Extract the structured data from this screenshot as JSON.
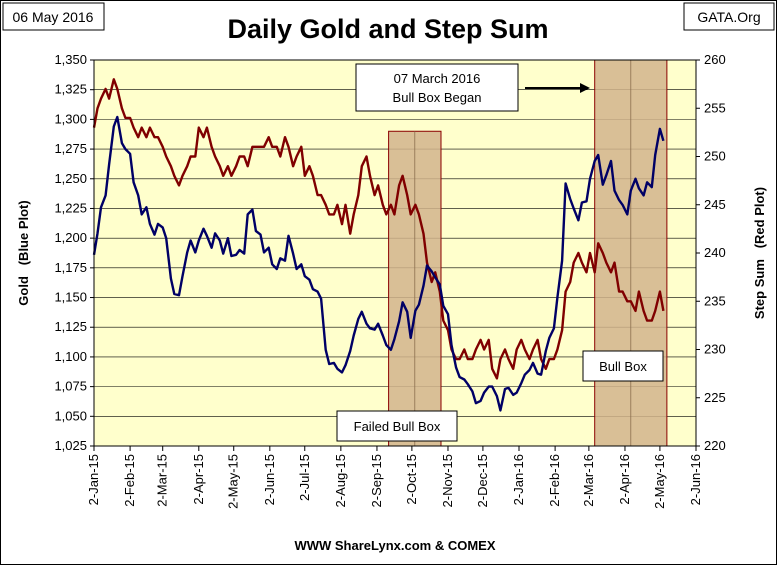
{
  "chart_data": {
    "type": "line",
    "title": "Daily Gold and Step Sum",
    "date_label": "06 May 2016",
    "brand": "GATA.Org",
    "source": "WWW ShareLynx.com & COMEX",
    "ylabel_left": "Gold   (Blue Plot)",
    "ylabel_right": "Step Sum   (Red Plot)",
    "x_ticks": [
      "2-Jan-15",
      "2-Feb-15",
      "2-Mar-15",
      "2-Apr-15",
      "2-May-15",
      "2-Jun-15",
      "2-Jul-15",
      "2-Aug-15",
      "2-Sep-15",
      "2-Oct-15",
      "2-Nov-15",
      "2-Dec-15",
      "2-Jan-16",
      "2-Feb-16",
      "2-Mar-16",
      "2-Apr-16",
      "2-May-16",
      "2-Jun-16"
    ],
    "x_range": [
      "2-Jan-15",
      "2-Jun-16"
    ],
    "ylim_left": [
      1025,
      1350
    ],
    "y_ticks_left": [
      "1,025",
      "1,050",
      "1,075",
      "1,100",
      "1,125",
      "1,150",
      "1,175",
      "1,200",
      "1,225",
      "1,250",
      "1,275",
      "1,300",
      "1,325",
      "1,350"
    ],
    "ylim_right": [
      220,
      260
    ],
    "y_ticks_right": [
      "220",
      "225",
      "230",
      "235",
      "240",
      "245",
      "250",
      "255",
      "260"
    ],
    "grid": "horizontal",
    "annotations": [
      {
        "name": "failed-bull-box",
        "label": "Failed Bull Box",
        "x_start": "2015-09-12",
        "x_end": "2015-10-27",
        "y_top_left_axis": 1290
      },
      {
        "name": "bull-box",
        "label": "Bull Box",
        "x_start": "2016-03-07",
        "x_end": "2016-05-08",
        "y_top_left_axis": 1350
      },
      {
        "name": "bull-box-began",
        "label_line1": "07 March 2016",
        "label_line2": "Bull Box Began",
        "arrow": "right"
      }
    ],
    "colors": {
      "gold_series": "#000066",
      "step_sum_series": "#800000",
      "plot_bg": "#ffffcc",
      "box_fill": "#d2b48c"
    },
    "series": [
      {
        "axis": "left",
        "x": [
          "2015-01-02",
          "2015-01-05",
          "2015-01-08",
          "2015-01-12",
          "2015-01-15",
          "2015-01-19",
          "2015-01-22",
          "2015-01-26",
          "2015-01-29",
          "2015-02-02",
          "2015-02-05",
          "2015-02-09",
          "2015-02-12",
          "2015-02-16",
          "2015-02-19",
          "2015-02-23",
          "2015-02-26",
          "2015-03-02",
          "2015-03-05",
          "2015-03-09",
          "2015-03-12",
          "2015-03-16",
          "2015-03-19",
          "2015-03-23",
          "2015-03-26",
          "2015-03-30",
          "2015-04-02",
          "2015-04-06",
          "2015-04-09",
          "2015-04-13",
          "2015-04-16",
          "2015-04-20",
          "2015-04-23",
          "2015-04-27",
          "2015-04-30",
          "2015-05-04",
          "2015-05-07",
          "2015-05-11",
          "2015-05-14",
          "2015-05-18",
          "2015-05-21",
          "2015-05-25",
          "2015-05-28",
          "2015-06-01",
          "2015-06-04",
          "2015-06-08",
          "2015-06-11",
          "2015-06-15",
          "2015-06-18",
          "2015-06-22",
          "2015-06-25",
          "2015-06-29",
          "2015-07-02",
          "2015-07-06",
          "2015-07-09",
          "2015-07-13",
          "2015-07-16",
          "2015-07-20",
          "2015-07-23",
          "2015-07-27",
          "2015-07-30",
          "2015-08-03",
          "2015-08-06",
          "2015-08-10",
          "2015-08-13",
          "2015-08-17",
          "2015-08-20",
          "2015-08-24",
          "2015-08-27",
          "2015-08-31",
          "2015-09-03",
          "2015-09-07",
          "2015-09-10",
          "2015-09-14",
          "2015-09-17",
          "2015-09-21",
          "2015-09-24",
          "2015-09-28",
          "2015-10-01",
          "2015-10-05",
          "2015-10-08",
          "2015-10-12",
          "2015-10-15",
          "2015-10-19",
          "2015-10-22",
          "2015-10-26",
          "2015-10-29",
          "2015-11-02",
          "2015-11-05",
          "2015-11-09",
          "2015-11-12",
          "2015-11-16",
          "2015-11-19",
          "2015-11-23",
          "2015-11-26",
          "2015-11-30",
          "2015-12-03",
          "2015-12-07",
          "2015-12-10",
          "2015-12-14",
          "2015-12-17",
          "2015-12-21",
          "2015-12-24",
          "2015-12-28",
          "2015-12-31",
          "2016-01-04",
          "2016-01-07",
          "2016-01-11",
          "2016-01-14",
          "2016-01-18",
          "2016-01-21",
          "2016-01-25",
          "2016-01-28",
          "2016-02-01",
          "2016-02-04",
          "2016-02-08",
          "2016-02-11",
          "2016-02-15",
          "2016-02-18",
          "2016-02-22",
          "2016-02-25",
          "2016-02-29",
          "2016-03-03",
          "2016-03-07",
          "2016-03-10",
          "2016-03-14",
          "2016-03-17",
          "2016-03-21",
          "2016-03-24",
          "2016-03-28",
          "2016-03-31",
          "2016-04-04",
          "2016-04-07",
          "2016-04-11",
          "2016-04-14",
          "2016-04-18",
          "2016-04-21",
          "2016-04-25",
          "2016-04-28",
          "2016-05-02",
          "2016-05-05"
        ],
        "values": [
          1186,
          1204,
          1226,
          1236,
          1262,
          1294,
          1302,
          1280,
          1275,
          1271,
          1247,
          1236,
          1220,
          1226,
          1212,
          1203,
          1212,
          1209,
          1200,
          1166,
          1153,
          1152,
          1168,
          1188,
          1198,
          1188,
          1198,
          1208,
          1202,
          1192,
          1204,
          1198,
          1187,
          1200,
          1185,
          1186,
          1190,
          1187,
          1220,
          1224,
          1206,
          1203,
          1188,
          1192,
          1178,
          1174,
          1183,
          1181,
          1202,
          1187,
          1174,
          1178,
          1168,
          1165,
          1157,
          1155,
          1149,
          1106,
          1094,
          1095,
          1090,
          1087,
          1093,
          1105,
          1118,
          1132,
          1138,
          1128,
          1124,
          1123,
          1128,
          1118,
          1110,
          1106,
          1115,
          1130,
          1146,
          1138,
          1116,
          1139,
          1144,
          1160,
          1177,
          1172,
          1167,
          1161,
          1143,
          1136,
          1110,
          1091,
          1083,
          1081,
          1077,
          1071,
          1061,
          1063,
          1070,
          1075,
          1075,
          1067,
          1055,
          1073,
          1074,
          1068,
          1070,
          1078,
          1085,
          1089,
          1095,
          1086,
          1085,
          1105,
          1116,
          1124,
          1150,
          1181,
          1246,
          1233,
          1225,
          1215,
          1230,
          1231,
          1250,
          1265,
          1270,
          1245,
          1253,
          1265,
          1240,
          1232,
          1228,
          1220,
          1240,
          1250,
          1242,
          1236,
          1247,
          1243,
          1270,
          1292,
          1282
        ]
      },
      {
        "axis": "right",
        "x": [
          "2015-01-02",
          "2015-01-05",
          "2015-01-08",
          "2015-01-12",
          "2015-01-15",
          "2015-01-19",
          "2015-01-22",
          "2015-01-26",
          "2015-01-29",
          "2015-02-02",
          "2015-02-05",
          "2015-02-09",
          "2015-02-12",
          "2015-02-16",
          "2015-02-19",
          "2015-02-23",
          "2015-02-26",
          "2015-03-02",
          "2015-03-05",
          "2015-03-09",
          "2015-03-12",
          "2015-03-16",
          "2015-03-19",
          "2015-03-23",
          "2015-03-26",
          "2015-03-30",
          "2015-04-02",
          "2015-04-06",
          "2015-04-09",
          "2015-04-13",
          "2015-04-16",
          "2015-04-20",
          "2015-04-23",
          "2015-04-27",
          "2015-04-30",
          "2015-05-04",
          "2015-05-07",
          "2015-05-11",
          "2015-05-14",
          "2015-05-18",
          "2015-05-21",
          "2015-05-25",
          "2015-05-28",
          "2015-06-01",
          "2015-06-04",
          "2015-06-08",
          "2015-06-11",
          "2015-06-15",
          "2015-06-18",
          "2015-06-22",
          "2015-06-25",
          "2015-06-29",
          "2015-07-02",
          "2015-07-06",
          "2015-07-09",
          "2015-07-13",
          "2015-07-16",
          "2015-07-20",
          "2015-07-23",
          "2015-07-27",
          "2015-07-30",
          "2015-08-03",
          "2015-08-06",
          "2015-08-10",
          "2015-08-13",
          "2015-08-17",
          "2015-08-20",
          "2015-08-24",
          "2015-08-27",
          "2015-08-31",
          "2015-09-03",
          "2015-09-07",
          "2015-09-10",
          "2015-09-14",
          "2015-09-17",
          "2015-09-21",
          "2015-09-24",
          "2015-09-28",
          "2015-10-01",
          "2015-10-05",
          "2015-10-08",
          "2015-10-12",
          "2015-10-15",
          "2015-10-19",
          "2015-10-22",
          "2015-10-26",
          "2015-10-29",
          "2015-11-02",
          "2015-11-05",
          "2015-11-09",
          "2015-11-12",
          "2015-11-16",
          "2015-11-19",
          "2015-11-23",
          "2015-11-26",
          "2015-11-30",
          "2015-12-03",
          "2015-12-07",
          "2015-12-10",
          "2015-12-14",
          "2015-12-17",
          "2015-12-21",
          "2015-12-24",
          "2015-12-28",
          "2015-12-31",
          "2016-01-04",
          "2016-01-07",
          "2016-01-11",
          "2016-01-14",
          "2016-01-18",
          "2016-01-21",
          "2016-01-25",
          "2016-01-28",
          "2016-02-01",
          "2016-02-04",
          "2016-02-08",
          "2016-02-11",
          "2016-02-15",
          "2016-02-18",
          "2016-02-22",
          "2016-02-25",
          "2016-02-29",
          "2016-03-03",
          "2016-03-07",
          "2016-03-10",
          "2016-03-14",
          "2016-03-17",
          "2016-03-21",
          "2016-03-24",
          "2016-03-28",
          "2016-03-31",
          "2016-04-04",
          "2016-04-07",
          "2016-04-11",
          "2016-04-14",
          "2016-04-18",
          "2016-04-21",
          "2016-04-25",
          "2016-04-28",
          "2016-05-02",
          "2016-05-05"
        ],
        "values": [
          253,
          255,
          256,
          257,
          256,
          258,
          257,
          255,
          254,
          254,
          253,
          252,
          253,
          252,
          253,
          252,
          252,
          251,
          250,
          249,
          248,
          247,
          248,
          249,
          250,
          250,
          253,
          252,
          253,
          251,
          250,
          249,
          248,
          249,
          248,
          249,
          250,
          250,
          249,
          251,
          251,
          251,
          251,
          252,
          251,
          251,
          250,
          252,
          251,
          249,
          250,
          251,
          248,
          249,
          248,
          246,
          246,
          245,
          244,
          244,
          245,
          243,
          245,
          242,
          244,
          246,
          249,
          250,
          248,
          246,
          247,
          245,
          244,
          245,
          244,
          247,
          248,
          246,
          244,
          245,
          244,
          242,
          239,
          237,
          238,
          236,
          233,
          232,
          230,
          229,
          229,
          230,
          229,
          229,
          230,
          231,
          230,
          231,
          228,
          227,
          229,
          230,
          229,
          228,
          230,
          231,
          230,
          229,
          230,
          231,
          229,
          228,
          229,
          229,
          230,
          232,
          236,
          237,
          239,
          240,
          239,
          238,
          240,
          238,
          241,
          240,
          239,
          238,
          239,
          236,
          236,
          235,
          235,
          234,
          236,
          234,
          233,
          233,
          234,
          236,
          234
        ]
      }
    ]
  }
}
